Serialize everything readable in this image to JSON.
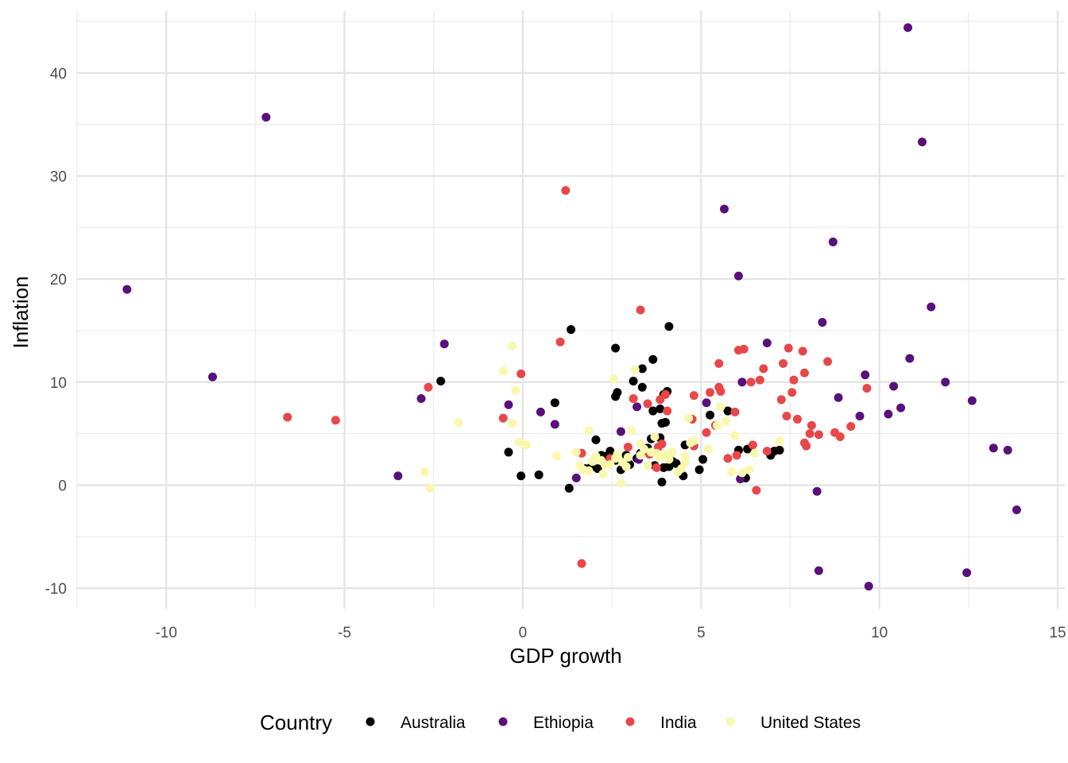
{
  "chart_data": {
    "type": "scatter",
    "title": "",
    "xlabel": "GDP growth",
    "ylabel": "Inflation",
    "xlim": [
      -12.5,
      15.2
    ],
    "ylim": [
      -12,
      46
    ],
    "x_ticks": [
      -10,
      -5,
      0,
      5,
      10,
      15
    ],
    "y_ticks": [
      -10,
      0,
      10,
      20,
      30,
      40
    ],
    "grid": true,
    "legend": {
      "title": "Country",
      "position": "bottom"
    },
    "series": [
      {
        "name": "Australia",
        "color": "#000000",
        "points": [
          [
            -2.3,
            10.1
          ],
          [
            -0.4,
            3.2
          ],
          [
            -0.05,
            0.9
          ],
          [
            0.45,
            1.0
          ],
          [
            0.9,
            8.0
          ],
          [
            1.3,
            -0.3
          ],
          [
            1.35,
            15.1
          ],
          [
            2.05,
            4.4
          ],
          [
            2.6,
            13.3
          ],
          [
            2.65,
            9.0
          ],
          [
            2.6,
            8.6
          ],
          [
            3.35,
            11.3
          ],
          [
            3.35,
            9.5
          ],
          [
            3.1,
            10.1
          ],
          [
            3.65,
            12.2
          ],
          [
            4.1,
            15.4
          ],
          [
            4.05,
            9.1
          ],
          [
            3.95,
            8.8
          ],
          [
            3.85,
            7.4
          ],
          [
            3.65,
            7.2
          ],
          [
            3.9,
            6.0
          ],
          [
            4.0,
            6.1
          ],
          [
            1.9,
            1.7
          ],
          [
            2.1,
            1.6
          ],
          [
            2.2,
            2.9
          ],
          [
            2.45,
            3.3
          ],
          [
            2.6,
            2.4
          ],
          [
            2.75,
            1.5
          ],
          [
            2.9,
            2.9
          ],
          [
            3.0,
            2.0
          ],
          [
            3.2,
            2.6
          ],
          [
            3.5,
            3.6
          ],
          [
            3.6,
            4.5
          ],
          [
            3.85,
            4.6
          ],
          [
            3.95,
            1.7
          ],
          [
            3.9,
            0.3
          ],
          [
            4.1,
            1.8
          ],
          [
            4.2,
            2.3
          ],
          [
            4.5,
            0.9
          ],
          [
            4.55,
            3.9
          ],
          [
            4.95,
            1.5
          ],
          [
            5.05,
            2.5
          ],
          [
            5.25,
            6.8
          ],
          [
            5.75,
            7.2
          ],
          [
            6.05,
            3.4
          ],
          [
            6.25,
            0.7
          ],
          [
            6.3,
            3.5
          ],
          [
            6.95,
            2.9
          ],
          [
            7.05,
            3.3
          ],
          [
            7.2,
            3.4
          ],
          [
            1.75,
            1.6
          ],
          [
            2.3,
            2.8
          ],
          [
            3.3,
            3.1
          ],
          [
            4.3,
            2.1
          ],
          [
            3.7,
            1.9
          ],
          [
            2.55,
            2.4
          ]
        ]
      },
      {
        "name": "Ethiopia",
        "color": "#5a107a",
        "points": [
          [
            -11.1,
            19.0
          ],
          [
            -8.7,
            10.5
          ],
          [
            -7.2,
            35.7
          ],
          [
            -3.5,
            0.9
          ],
          [
            -2.85,
            8.4
          ],
          [
            -2.2,
            13.7
          ],
          [
            -0.4,
            7.8
          ],
          [
            0.5,
            7.1
          ],
          [
            0.9,
            5.9
          ],
          [
            1.5,
            0.7
          ],
          [
            2.75,
            5.2
          ],
          [
            3.2,
            7.6
          ],
          [
            3.25,
            2.5
          ],
          [
            5.15,
            8.0
          ],
          [
            5.65,
            26.8
          ],
          [
            6.05,
            20.3
          ],
          [
            6.1,
            0.6
          ],
          [
            6.15,
            10.0
          ],
          [
            6.85,
            13.8
          ],
          [
            8.25,
            -0.6
          ],
          [
            8.3,
            -8.3
          ],
          [
            8.4,
            15.8
          ],
          [
            8.7,
            23.6
          ],
          [
            8.85,
            8.5
          ],
          [
            9.45,
            6.7
          ],
          [
            9.6,
            10.7
          ],
          [
            9.7,
            -9.8
          ],
          [
            10.25,
            6.9
          ],
          [
            10.4,
            9.6
          ],
          [
            10.6,
            7.5
          ],
          [
            10.8,
            44.4
          ],
          [
            10.85,
            12.3
          ],
          [
            11.2,
            33.3
          ],
          [
            11.45,
            17.3
          ],
          [
            11.85,
            10.0
          ],
          [
            12.45,
            -8.5
          ],
          [
            12.6,
            8.2
          ],
          [
            13.2,
            3.6
          ],
          [
            13.6,
            3.4
          ],
          [
            13.85,
            -2.4
          ]
        ]
      },
      {
        "name": "India",
        "color": "#e8474a",
        "points": [
          [
            -6.6,
            6.6
          ],
          [
            -5.25,
            6.3
          ],
          [
            -2.65,
            9.5
          ],
          [
            -0.55,
            6.5
          ],
          [
            -0.05,
            10.8
          ],
          [
            1.2,
            28.6
          ],
          [
            1.05,
            13.9
          ],
          [
            1.65,
            -7.6
          ],
          [
            1.65,
            3.1
          ],
          [
            2.45,
            2.6
          ],
          [
            2.95,
            3.7
          ],
          [
            3.1,
            8.4
          ],
          [
            3.3,
            17.0
          ],
          [
            3.5,
            7.9
          ],
          [
            3.55,
            3.0
          ],
          [
            3.75,
            1.7
          ],
          [
            3.8,
            3.7
          ],
          [
            3.9,
            4.0
          ],
          [
            3.85,
            8.3
          ],
          [
            4.0,
            8.8
          ],
          [
            4.05,
            7.2
          ],
          [
            4.8,
            8.7
          ],
          [
            4.75,
            6.4
          ],
          [
            4.8,
            3.8
          ],
          [
            5.15,
            5.1
          ],
          [
            5.25,
            9.0
          ],
          [
            5.4,
            5.8
          ],
          [
            5.5,
            9.5
          ],
          [
            5.5,
            11.8
          ],
          [
            5.55,
            9.1
          ],
          [
            5.75,
            2.6
          ],
          [
            5.95,
            7.1
          ],
          [
            6.0,
            2.9
          ],
          [
            6.05,
            13.1
          ],
          [
            6.2,
            13.2
          ],
          [
            6.4,
            10.0
          ],
          [
            6.45,
            3.9
          ],
          [
            6.55,
            -0.5
          ],
          [
            6.65,
            10.2
          ],
          [
            6.75,
            11.3
          ],
          [
            6.85,
            3.3
          ],
          [
            7.25,
            8.3
          ],
          [
            7.3,
            11.8
          ],
          [
            7.4,
            6.7
          ],
          [
            7.45,
            13.3
          ],
          [
            7.55,
            9.0
          ],
          [
            7.6,
            10.2
          ],
          [
            7.7,
            6.4
          ],
          [
            7.85,
            13.0
          ],
          [
            7.9,
            10.9
          ],
          [
            7.9,
            4.1
          ],
          [
            7.95,
            3.8
          ],
          [
            8.05,
            5.0
          ],
          [
            8.1,
            5.8
          ],
          [
            8.3,
            4.9
          ],
          [
            8.55,
            12.0
          ],
          [
            8.75,
            5.1
          ],
          [
            8.9,
            4.7
          ],
          [
            9.2,
            5.7
          ],
          [
            9.65,
            9.4
          ]
        ]
      },
      {
        "name": "United States",
        "color": "#f9f8ac",
        "points": [
          [
            -2.75,
            1.3
          ],
          [
            -2.6,
            -0.3
          ],
          [
            -1.8,
            6.1
          ],
          [
            -0.55,
            11.1
          ],
          [
            -0.3,
            13.5
          ],
          [
            -0.3,
            6.0
          ],
          [
            -0.2,
            9.2
          ],
          [
            -0.1,
            4.2
          ],
          [
            0.1,
            3.9
          ],
          [
            0.95,
            2.8
          ],
          [
            1.5,
            3.2
          ],
          [
            1.7,
            1.5
          ],
          [
            1.85,
            1.4
          ],
          [
            1.85,
            5.3
          ],
          [
            2.05,
            2.8
          ],
          [
            2.25,
            1.1
          ],
          [
            2.3,
            2.0
          ],
          [
            2.45,
            2.0
          ],
          [
            2.55,
            10.3
          ],
          [
            2.65,
            3.0
          ],
          [
            2.75,
            0.2
          ],
          [
            2.8,
            2.2
          ],
          [
            2.95,
            2.7
          ],
          [
            3.05,
            5.3
          ],
          [
            3.15,
            11.2
          ],
          [
            3.3,
            2.9
          ],
          [
            3.4,
            3.5
          ],
          [
            3.5,
            1.9
          ],
          [
            3.6,
            3.2
          ],
          [
            3.7,
            4.7
          ],
          [
            3.85,
            2.7
          ],
          [
            4.0,
            3.0
          ],
          [
            4.1,
            2.5
          ],
          [
            4.2,
            3.2
          ],
          [
            4.35,
            1.3
          ],
          [
            4.45,
            1.6
          ],
          [
            4.55,
            2.8
          ],
          [
            4.65,
            6.5
          ],
          [
            4.7,
            4.1
          ],
          [
            4.8,
            4.3
          ],
          [
            5.2,
            3.5
          ],
          [
            5.45,
            5.8
          ],
          [
            5.55,
            7.6
          ],
          [
            5.7,
            6.2
          ],
          [
            5.85,
            1.3
          ],
          [
            5.95,
            4.8
          ],
          [
            6.15,
            1.2
          ],
          [
            6.35,
            1.5
          ],
          [
            6.5,
            3.1
          ],
          [
            7.2,
            4.3
          ],
          [
            1.6,
            1.9
          ],
          [
            2.2,
            2.4
          ],
          [
            2.6,
            2.6
          ],
          [
            3.3,
            4.0
          ],
          [
            4.55,
            2.2
          ],
          [
            2.9,
            1.8
          ],
          [
            3.75,
            3.1
          ],
          [
            1.95,
            2.3
          ]
        ]
      }
    ]
  }
}
